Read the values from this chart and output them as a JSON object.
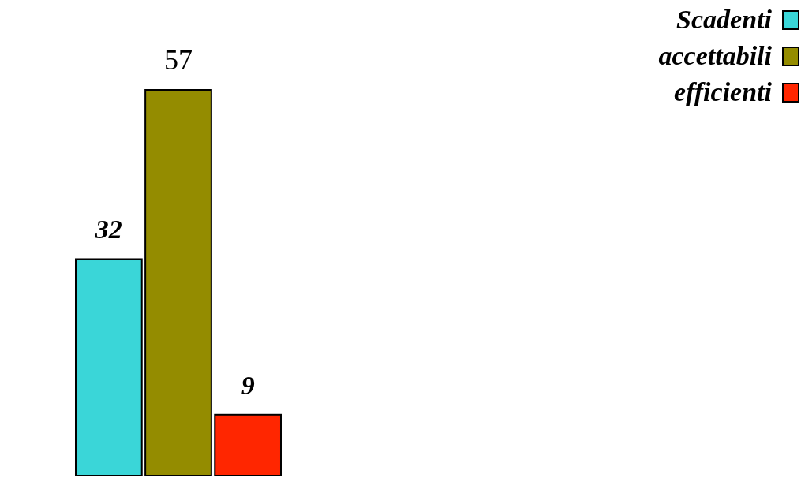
{
  "chart_data": {
    "type": "bar",
    "categories": [
      null
    ],
    "series": [
      {
        "name": "Scadenti",
        "color": "#3ad6d8",
        "values": [
          32
        ]
      },
      {
        "name": "accettabili",
        "color": "#948c00",
        "values": [
          57
        ]
      },
      {
        "name": "efficienti",
        "color": "#ff2600",
        "values": [
          9
        ]
      }
    ],
    "data_labels": true,
    "legend": "top right"
  }
}
